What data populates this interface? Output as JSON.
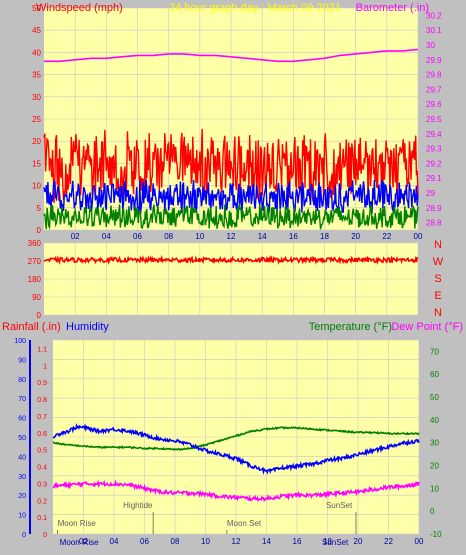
{
  "colors": {
    "background": "#c0c0c0",
    "plot_bg": "#ffffa8",
    "grid": "#c8c8c8",
    "wind_gust": "#ff0000",
    "wind_avg": "#0000ff",
    "wind_low": "#008000",
    "barometer": "#ff00ff",
    "direction": "#ff0000",
    "humidity": "#0000ff",
    "temperature": "#008000",
    "dew_point": "#ff00ff",
    "rainfall": "#ff0000",
    "title": "#ffff00",
    "annotation": "#606060"
  },
  "chart_data": [
    {
      "type": "line",
      "id": "wind-barometer",
      "title": "24 hour graph day : March 09 2021",
      "left_axis_label": "Windspeed (mph)",
      "right_axis_label": "Barometer (.in)",
      "x_ticks": [
        "02",
        "04",
        "06",
        "08",
        "10",
        "12",
        "14",
        "16",
        "18",
        "20",
        "22",
        "00"
      ],
      "x_range_hours": [
        0,
        24
      ],
      "left_ticks": [
        "0",
        "5",
        "10",
        "15",
        "20",
        "25",
        "30",
        "35",
        "40",
        "45",
        "50"
      ],
      "left_range": [
        0,
        50
      ],
      "right_ticks": [
        "28.8",
        "28.9",
        "29",
        "29.1",
        "29.2",
        "29.3",
        "29.4",
        "29.5",
        "29.6",
        "29.7",
        "29.8",
        "29.9",
        "30",
        "30.1",
        "30.2"
      ],
      "right_range": [
        28.75,
        30.25
      ],
      "barometer_series": {
        "hours": [
          0,
          1,
          2,
          3,
          4,
          5,
          6,
          7,
          8,
          9,
          10,
          11,
          12,
          13,
          14,
          15,
          16,
          17,
          18,
          19,
          20,
          21,
          22,
          23,
          24
        ],
        "values": [
          29.89,
          29.89,
          29.9,
          29.91,
          29.91,
          29.92,
          29.93,
          29.93,
          29.94,
          29.94,
          29.93,
          29.93,
          29.92,
          29.91,
          29.9,
          29.89,
          29.89,
          29.9,
          29.91,
          29.93,
          29.94,
          29.95,
          29.96,
          29.96,
          29.97
        ]
      },
      "wind_series": [
        {
          "name": "gust",
          "base": 14.5,
          "spread": 8.5,
          "color_key": "wind_gust"
        },
        {
          "name": "average",
          "base": 7.5,
          "spread": 4,
          "color_key": "wind_avg"
        },
        {
          "name": "low",
          "base": 3,
          "spread": 3,
          "color_key": "wind_low"
        }
      ]
    },
    {
      "type": "line",
      "id": "wind-direction",
      "right_letters": [
        "N",
        "W",
        "S",
        "E",
        "N"
      ],
      "left_ticks": [
        "0",
        "90",
        "180",
        "270",
        "360"
      ],
      "left_range": [
        0,
        360
      ],
      "series": {
        "name": "direction",
        "base": 275,
        "spread": 22
      }
    },
    {
      "type": "line",
      "id": "temp-humidity",
      "left_label_1": "Rainfall (.in)",
      "left_label_2": "Humidity",
      "right_label_1": "Temperature (°F)",
      "right_label_2": "Dew Point (°F)",
      "x_ticks": [
        "02",
        "04",
        "06",
        "08",
        "10",
        "12",
        "14",
        "16",
        "18",
        "20",
        "22",
        "00"
      ],
      "humidity_ticks": [
        "0",
        "10",
        "20",
        "30",
        "40",
        "50",
        "60",
        "70",
        "80",
        "90",
        "100"
      ],
      "humidity_range": [
        0,
        100
      ],
      "rainfall_ticks": [
        "0",
        "0.1",
        "0.2",
        "0.3",
        "0.4",
        "0.5",
        "0.6",
        "0.7",
        "0.8",
        "0.9",
        "1",
        "1.1"
      ],
      "rainfall_range": [
        0,
        1.15
      ],
      "temp_ticks": [
        "-10",
        "0",
        "10",
        "20",
        "30",
        "40",
        "50",
        "60",
        "70"
      ],
      "temp_range": [
        -10,
        75
      ],
      "humidity_series": {
        "hours": [
          0,
          0.5,
          1,
          1.5,
          2,
          2.5,
          3,
          4,
          5,
          6,
          7,
          8,
          9,
          10,
          11,
          12,
          12.5,
          13,
          13.5,
          14,
          14.5,
          15,
          16,
          17,
          18,
          19,
          20,
          21,
          22,
          23,
          24
        ],
        "values": [
          50,
          52,
          53,
          55,
          55,
          54,
          53,
          54,
          53,
          51,
          49,
          48,
          46,
          43,
          41,
          39,
          37,
          35,
          34,
          32,
          33,
          34,
          35,
          36,
          38,
          39,
          41,
          43,
          45,
          47,
          48
        ]
      },
      "temperature_series": {
        "hours": [
          0,
          1,
          2,
          3,
          4,
          5,
          6,
          7,
          8,
          9,
          10,
          11,
          12,
          13,
          14,
          15,
          16,
          17,
          18,
          19,
          20,
          21,
          22,
          23,
          24
        ],
        "values": [
          30,
          29,
          28.5,
          28,
          28,
          28,
          27.5,
          27.5,
          27,
          27.5,
          29,
          31,
          33,
          35,
          36,
          36.5,
          36.5,
          36,
          35.5,
          35,
          34.5,
          34.5,
          34,
          34,
          34
        ]
      },
      "dewpoint_series": {
        "hours": [
          0,
          1,
          2,
          3,
          4,
          5,
          6,
          7,
          8,
          9,
          10,
          11,
          12,
          13,
          14,
          15,
          16,
          17,
          18,
          19,
          20,
          21,
          22,
          23,
          24
        ],
        "values": [
          11,
          11.5,
          12,
          12,
          12,
          11.5,
          10,
          8.5,
          8,
          8,
          7.5,
          6.5,
          6,
          5.5,
          5.5,
          6.5,
          7,
          7,
          7.5,
          8,
          8.5,
          9.5,
          10.5,
          11,
          12
        ]
      },
      "annotations": [
        {
          "text": "Moon Rise",
          "hour": 0.3,
          "tier": "low"
        },
        {
          "text": "Hightide",
          "hour": 4.6,
          "tier": "high"
        },
        {
          "text": "Moon Set",
          "hour": 11.4,
          "tier": "low"
        },
        {
          "text": "SunSet",
          "hour": 17.9,
          "tier": "high"
        }
      ],
      "bottom_labels": [
        {
          "text": "Moon",
          "hour": 0.7
        },
        {
          "text": "Rise",
          "hour": 2.2
        },
        {
          "text": "SunSet",
          "hour": 17.9
        }
      ]
    }
  ]
}
